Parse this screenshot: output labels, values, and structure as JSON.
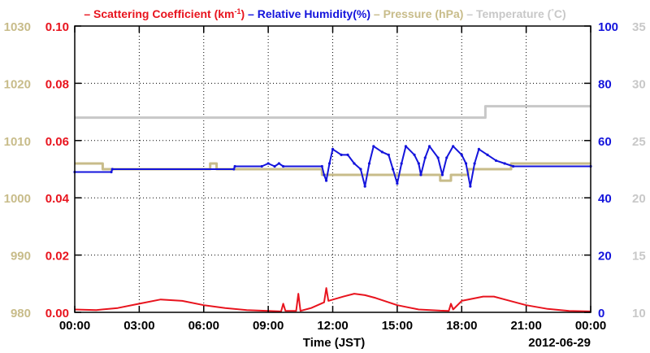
{
  "chart_data": {
    "type": "line",
    "legend": [
      {
        "text": "Scattering Coefficient (km",
        "sup": "-1",
        "suffix": ")",
        "color": "#e8141e"
      },
      {
        "text": "Relative Humidity(%)",
        "color": "#1414dc"
      },
      {
        "text": "Pressure (hPa)",
        "color": "#c8bc8a"
      },
      {
        "text": "Temperature (",
        "sup": "°",
        "suffix": "C)",
        "color": "#c8c8c8"
      }
    ],
    "legend_placement": "top",
    "xlabel": "Time (JST)",
    "date_label": "2012-06-29",
    "x_range": [
      0,
      24
    ],
    "x_ticks": [
      {
        "v": 0,
        "label": "00:00"
      },
      {
        "v": 3,
        "label": "03:00"
      },
      {
        "v": 6,
        "label": "06:00"
      },
      {
        "v": 9,
        "label": "09:00"
      },
      {
        "v": 12,
        "label": "12:00"
      },
      {
        "v": 15,
        "label": "15:00"
      },
      {
        "v": 18,
        "label": "18:00"
      },
      {
        "v": 21,
        "label": "21:00"
      },
      {
        "v": 24,
        "label": "00:00"
      }
    ],
    "grid": true,
    "axes": {
      "pressure": {
        "side": "left-outer",
        "color": "#c8bc8a",
        "range": [
          980,
          1030
        ],
        "ticks": [
          "980",
          "990",
          "1000",
          "1010",
          "1020",
          "1030"
        ]
      },
      "scattering": {
        "side": "left-inner",
        "color": "#e8141e",
        "range": [
          0,
          0.1
        ],
        "ticks": [
          "0.00",
          "0.02",
          "0.04",
          "0.06",
          "0.08",
          "0.10"
        ]
      },
      "humidity": {
        "side": "right-inner",
        "color": "#1414dc",
        "range": [
          0,
          100
        ],
        "ticks": [
          "0",
          "20",
          "40",
          "60",
          "80",
          "100"
        ]
      },
      "temperature": {
        "side": "right-outer",
        "color": "#c8c8c8",
        "range": [
          10,
          35
        ],
        "ticks": [
          "10",
          "15",
          "20",
          "25",
          "30",
          "35"
        ]
      }
    },
    "series": [
      {
        "name": "Temperature",
        "axis": "temperature",
        "color": "#c8c8c8",
        "step": true,
        "points": [
          [
            0,
            27
          ],
          [
            19.1,
            27
          ],
          [
            19.1,
            28
          ],
          [
            24,
            28
          ]
        ]
      },
      {
        "name": "Pressure",
        "axis": "pressure",
        "color": "#c8bc8a",
        "step": true,
        "points": [
          [
            0,
            1006
          ],
          [
            1.3,
            1006
          ],
          [
            1.3,
            1005
          ],
          [
            2,
            1005
          ],
          [
            6.3,
            1005
          ],
          [
            6.3,
            1006
          ],
          [
            6.6,
            1006
          ],
          [
            6.6,
            1005
          ],
          [
            11.5,
            1005
          ],
          [
            11.5,
            1004
          ],
          [
            17,
            1004
          ],
          [
            17,
            1003
          ],
          [
            17.5,
            1003
          ],
          [
            17.5,
            1004
          ],
          [
            18.3,
            1004
          ],
          [
            18.3,
            1005
          ],
          [
            20.3,
            1005
          ],
          [
            20.3,
            1006
          ],
          [
            24,
            1006
          ]
        ]
      },
      {
        "name": "Relative Humidity",
        "axis": "humidity",
        "color": "#1414dc",
        "step": false,
        "points": [
          [
            0,
            49
          ],
          [
            1.7,
            49
          ],
          [
            1.75,
            50
          ],
          [
            7.4,
            50
          ],
          [
            7.45,
            51
          ],
          [
            8.7,
            51
          ],
          [
            9.0,
            52
          ],
          [
            9.3,
            51
          ],
          [
            9.5,
            52
          ],
          [
            9.7,
            51
          ],
          [
            11.5,
            51
          ],
          [
            11.6,
            48
          ],
          [
            11.7,
            46
          ],
          [
            11.85,
            52
          ],
          [
            12.0,
            57
          ],
          [
            12.4,
            55
          ],
          [
            12.7,
            55
          ],
          [
            13.0,
            52
          ],
          [
            13.3,
            50
          ],
          [
            13.5,
            44
          ],
          [
            13.7,
            52
          ],
          [
            13.9,
            58
          ],
          [
            14.3,
            56
          ],
          [
            14.6,
            55
          ],
          [
            14.8,
            50
          ],
          [
            15.0,
            45
          ],
          [
            15.2,
            52
          ],
          [
            15.4,
            58
          ],
          [
            15.8,
            55
          ],
          [
            16.0,
            52
          ],
          [
            16.1,
            48
          ],
          [
            16.3,
            54
          ],
          [
            16.5,
            58
          ],
          [
            16.9,
            54
          ],
          [
            17.1,
            48
          ],
          [
            17.3,
            54
          ],
          [
            17.6,
            58
          ],
          [
            18.0,
            55
          ],
          [
            18.2,
            52
          ],
          [
            18.4,
            44
          ],
          [
            18.6,
            52
          ],
          [
            18.8,
            57
          ],
          [
            19.2,
            55
          ],
          [
            19.6,
            53
          ],
          [
            20.0,
            52
          ],
          [
            20.4,
            51
          ],
          [
            24,
            51
          ]
        ]
      },
      {
        "name": "Scattering Coefficient",
        "axis": "scattering",
        "color": "#e8141e",
        "step": false,
        "points": [
          [
            0,
            0.001
          ],
          [
            1.0,
            0.0008
          ],
          [
            2.0,
            0.0015
          ],
          [
            3.0,
            0.003
          ],
          [
            4.0,
            0.0045
          ],
          [
            5.0,
            0.004
          ],
          [
            6.0,
            0.0025
          ],
          [
            7.0,
            0.0015
          ],
          [
            8.0,
            0.0008
          ],
          [
            9.0,
            0.0005
          ],
          [
            9.6,
            0.0003
          ],
          [
            9.7,
            0.003
          ],
          [
            9.8,
            0.0005
          ],
          [
            10.3,
            0.0005
          ],
          [
            10.4,
            0.0065
          ],
          [
            10.5,
            0.0005
          ],
          [
            11.0,
            0.0015
          ],
          [
            11.6,
            0.0035
          ],
          [
            11.7,
            0.0085
          ],
          [
            11.8,
            0.004
          ],
          [
            12.5,
            0.0055
          ],
          [
            13.0,
            0.0065
          ],
          [
            13.5,
            0.006
          ],
          [
            14.0,
            0.005
          ],
          [
            15.0,
            0.0025
          ],
          [
            16.0,
            0.001
          ],
          [
            17.0,
            0.0006
          ],
          [
            17.4,
            0.0005
          ],
          [
            17.5,
            0.003
          ],
          [
            17.6,
            0.001
          ],
          [
            18.0,
            0.004
          ],
          [
            19.0,
            0.0055
          ],
          [
            19.5,
            0.0055
          ],
          [
            20.0,
            0.0045
          ],
          [
            21.0,
            0.0025
          ],
          [
            22.0,
            0.0012
          ],
          [
            23.0,
            0.0005
          ],
          [
            24,
            0.0003
          ]
        ]
      }
    ]
  }
}
